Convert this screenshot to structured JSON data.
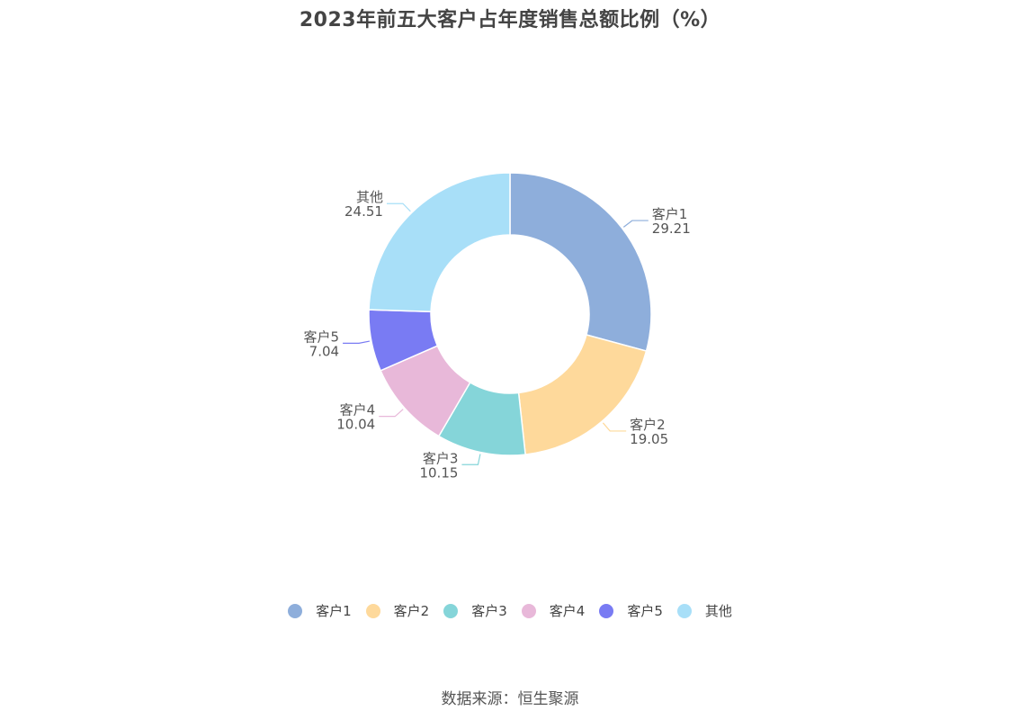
{
  "chart_data": {
    "type": "pie",
    "title": "2023年前五大客户占年度销售总额比例（%）",
    "categories": [
      "客户1",
      "客户2",
      "客户3",
      "客户4",
      "客户5",
      "其他"
    ],
    "values": [
      29.21,
      19.05,
      10.15,
      10.04,
      7.04,
      24.51
    ],
    "value_labels": [
      "29.21",
      "19.05",
      "10.15",
      "10.04",
      "7.04",
      "24.51"
    ],
    "colors": [
      "#8eaedb",
      "#fed99b",
      "#85d5d9",
      "#e8b8d9",
      "#797bf3",
      "#a8dff8"
    ],
    "donut": true,
    "legend_position": "bottom-center"
  },
  "source": "数据来源：恒生聚源"
}
